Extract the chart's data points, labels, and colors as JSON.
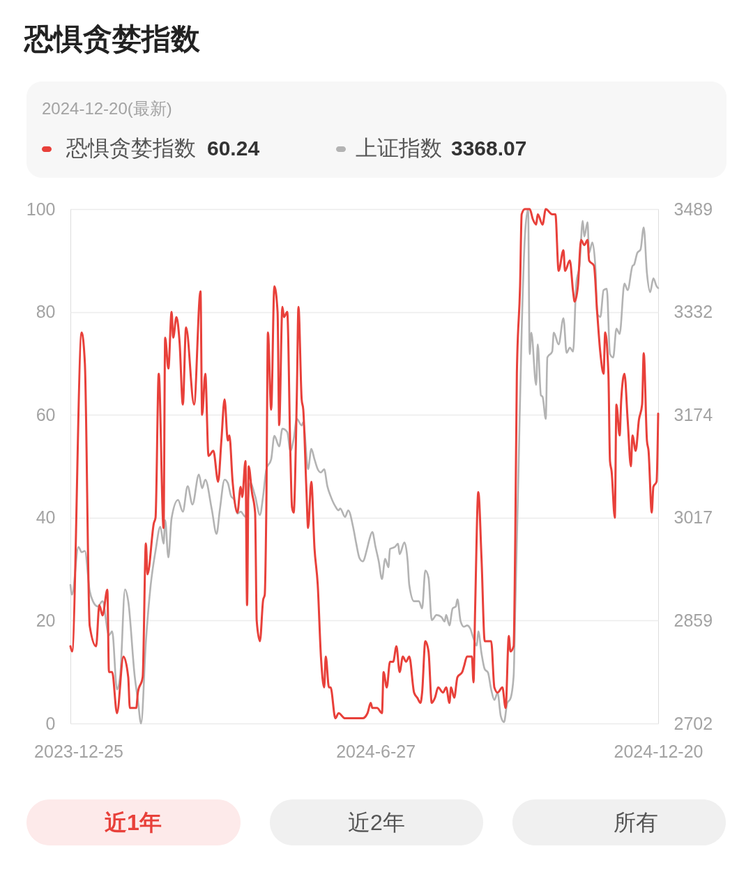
{
  "chart_data": {
    "type": "line",
    "title": "恐惧贪婪指数",
    "annotations": [
      "2024-12-20(最新)",
      "60.24",
      "3368.07",
      "近1年",
      "近2年",
      "所有"
    ],
    "xlim": [
      "2023-12-20",
      "2024-12-20"
    ],
    "xticks": [
      "2023-12-25",
      {
        "value": "2024-06-27",
        "label": "2024-6-27"
      },
      "2024-12-20"
    ],
    "ylim": [
      0,
      100
    ],
    "yticks": [
      0,
      20,
      40,
      60,
      80,
      100
    ],
    "y2lim": [
      2702,
      3489
    ],
    "y2ticks": [
      2702,
      2859,
      3017,
      3174,
      3332,
      3489
    ],
    "grid": "y",
    "legend": "top",
    "series": [
      {
        "name": "恐惧贪婪指数",
        "color": "#e8403a",
        "x": [
          "2023-12-20",
          "2023-12-21",
          "2023-12-27",
          "2023-12-29",
          "2024-01-01",
          "2024-01-05",
          "2024-01-07",
          "2024-01-09",
          "2024-01-12",
          "2024-01-13",
          "2024-01-15",
          "2024-01-18",
          "2024-01-22",
          "2024-01-25",
          "2024-01-26",
          "2024-01-30",
          "2024-01-31",
          "2024-02-03",
          "2024-02-05",
          "2024-02-06",
          "2024-02-10",
          "2024-02-11",
          "2024-02-13",
          "2024-02-16",
          "2024-02-17",
          "2024-02-19",
          "2024-02-21",
          "2024-02-22",
          "2024-02-24",
          "2024-02-26",
          "2024-02-28",
          "2024-03-01",
          "2024-03-06",
          "2024-03-10",
          "2024-03-11",
          "2024-03-13",
          "2024-03-15",
          "2024-03-18",
          "2024-03-21",
          "2024-03-23",
          "2024-03-25",
          "2024-03-27",
          "2024-03-28",
          "2024-03-30",
          "2024-04-02",
          "2024-04-04",
          "2024-04-05",
          "2024-04-07",
          "2024-04-08",
          "2024-04-09",
          "2024-04-11",
          "2024-04-13",
          "2024-04-14",
          "2024-04-16",
          "2024-04-18",
          "2024-04-19",
          "2024-04-20",
          "2024-04-21",
          "2024-04-23",
          "2024-04-25",
          "2024-04-27",
          "2024-04-28",
          "2024-04-30",
          "2024-05-01",
          "2024-05-03",
          "2024-05-05",
          "2024-05-06",
          "2024-05-07",
          "2024-05-09",
          "2024-05-10",
          "2024-05-12",
          "2024-05-13",
          "2024-05-15",
          "2024-05-16",
          "2024-05-18",
          "2024-05-20",
          "2024-05-22",
          "2024-05-24",
          "2024-05-26",
          "2024-05-27",
          "2024-05-29",
          "2024-05-30",
          "2024-06-02",
          "2024-06-04",
          "2024-06-08",
          "2024-06-11",
          "2024-06-14",
          "2024-06-16",
          "2024-06-19",
          "2024-06-22",
          "2024-06-24",
          "2024-06-25",
          "2024-06-28",
          "2024-07-01",
          "2024-07-02",
          "2024-07-04",
          "2024-07-06",
          "2024-07-08",
          "2024-07-10",
          "2024-07-12",
          "2024-07-14",
          "2024-07-16",
          "2024-07-18",
          "2024-07-21",
          "2024-07-23",
          "2024-07-25",
          "2024-07-26",
          "2024-07-28",
          "2024-07-30",
          "2024-08-01",
          "2024-08-03",
          "2024-08-05",
          "2024-08-08",
          "2024-08-10",
          "2024-08-12",
          "2024-08-13",
          "2024-08-15",
          "2024-08-17",
          "2024-08-20",
          "2024-08-21",
          "2024-08-23",
          "2024-08-26",
          "2024-08-27",
          "2024-08-28",
          "2024-08-30",
          "2024-09-01",
          "2024-09-03",
          "2024-09-05",
          "2024-09-07",
          "2024-09-09",
          "2024-09-11",
          "2024-09-14",
          "2024-09-16",
          "2024-09-18",
          "2024-09-19",
          "2024-09-21",
          "2024-09-22",
          "2024-09-23",
          "2024-09-25",
          "2024-09-26",
          "2024-09-28",
          "2024-10-01",
          "2024-10-03",
          "2024-10-05",
          "2024-10-06",
          "2024-10-09",
          "2024-10-11",
          "2024-10-15",
          "2024-10-17",
          "2024-10-19",
          "2024-10-22",
          "2024-10-23",
          "2024-10-26",
          "2024-10-28",
          "2024-10-29",
          "2024-10-31",
          "2024-11-02",
          "2024-11-04",
          "2024-11-06",
          "2024-11-07",
          "2024-11-10",
          "2024-11-12",
          "2024-11-14",
          "2024-11-16",
          "2024-11-17",
          "2024-11-19",
          "2024-11-20",
          "2024-11-21",
          "2024-11-23",
          "2024-11-24",
          "2024-11-26",
          "2024-11-27",
          "2024-11-29",
          "2024-12-01",
          "2024-12-03",
          "2024-12-04",
          "2024-12-06",
          "2024-12-08",
          "2024-12-10",
          "2024-12-11",
          "2024-12-13",
          "2024-12-14",
          "2024-12-16",
          "2024-12-17",
          "2024-12-19",
          "2024-12-20"
        ],
        "values": [
          15,
          14,
          76,
          70,
          19,
          15,
          23,
          21,
          26,
          10,
          10,
          2,
          13,
          9,
          3,
          3,
          6,
          9,
          35,
          29,
          39,
          40,
          68,
          38,
          75,
          69,
          80,
          75,
          79,
          74,
          62,
          77,
          62,
          84,
          60,
          68,
          52,
          53,
          47,
          55,
          63,
          55,
          56,
          47,
          41,
          46,
          44,
          51,
          23,
          50,
          45,
          41,
          20,
          16,
          24,
          25,
          42,
          76,
          61,
          85,
          80,
          58,
          81,
          79,
          80,
          52,
          42,
          41,
          64,
          81,
          63,
          61,
          45,
          38,
          47,
          34,
          27,
          13,
          7,
          13,
          7,
          7,
          1,
          2,
          1,
          1,
          1,
          1,
          1,
          2,
          4,
          3,
          3,
          2,
          10,
          7,
          12,
          12,
          15,
          10,
          13,
          12,
          13,
          6,
          5,
          4,
          6,
          16,
          14,
          4,
          5,
          7,
          6,
          7,
          4,
          7,
          5,
          9,
          10,
          11,
          13,
          13,
          8,
          22,
          45,
          32,
          16,
          16,
          16,
          7,
          6,
          7,
          3,
          17,
          14,
          15,
          36,
          68,
          85,
          99,
          100,
          100,
          98,
          97,
          99,
          97,
          100,
          99,
          99,
          88,
          92,
          88,
          90,
          84,
          82,
          85,
          94,
          93,
          94,
          90,
          89,
          80,
          72,
          68,
          76,
          68,
          51,
          49,
          40,
          62,
          56,
          63,
          68,
          59,
          50,
          56,
          53,
          59,
          62,
          72,
          55,
          53,
          41,
          46,
          47,
          60.24
        ]
      },
      {
        "name": "上证指数",
        "color": "#b3b3b3",
        "axis": "y2",
        "x": [
          "2023-12-20",
          "2023-12-21",
          "2023-12-25",
          "2023-12-27",
          "2023-12-29",
          "2024-01-01",
          "2024-01-03",
          "2024-01-06",
          "2024-01-09",
          "2024-01-13",
          "2024-01-15",
          "2024-01-18",
          "2024-01-20",
          "2024-01-23",
          "2024-01-25",
          "2024-01-29",
          "2024-01-31",
          "2024-02-02",
          "2024-02-05",
          "2024-02-08",
          "2024-02-11",
          "2024-02-14",
          "2024-02-16",
          "2024-02-17",
          "2024-02-19",
          "2024-02-21",
          "2024-02-25",
          "2024-02-28",
          "2024-03-02",
          "2024-03-05",
          "2024-03-09",
          "2024-03-11",
          "2024-03-13",
          "2024-03-17",
          "2024-03-20",
          "2024-03-22",
          "2024-03-25",
          "2024-03-27",
          "2024-03-29",
          "2024-03-31",
          "2024-04-02",
          "2024-04-04",
          "2024-04-07",
          "2024-04-10",
          "2024-04-13",
          "2024-04-16",
          "2024-04-18",
          "2024-04-20",
          "2024-04-23",
          "2024-04-25",
          "2024-04-28",
          "2024-04-30",
          "2024-05-03",
          "2024-05-05",
          "2024-05-07",
          "2024-05-09",
          "2024-05-12",
          "2024-05-13",
          "2024-05-16",
          "2024-05-18",
          "2024-05-20",
          "2024-05-22",
          "2024-05-24",
          "2024-05-26",
          "2024-05-28",
          "2024-05-30",
          "2024-06-02",
          "2024-06-04",
          "2024-06-05",
          "2024-06-08",
          "2024-06-10",
          "2024-06-13",
          "2024-06-15",
          "2024-06-17",
          "2024-06-19",
          "2024-06-22",
          "2024-06-23",
          "2024-06-25",
          "2024-06-27",
          "2024-06-29",
          "2024-07-01",
          "2024-07-03",
          "2024-07-05",
          "2024-07-06",
          "2024-07-09",
          "2024-07-11",
          "2024-07-12",
          "2024-07-15",
          "2024-07-17",
          "2024-07-18",
          "2024-07-21",
          "2024-07-24",
          "2024-07-26",
          "2024-07-28",
          "2024-07-30",
          "2024-08-01",
          "2024-08-04",
          "2024-08-07",
          "2024-08-09",
          "2024-08-10",
          "2024-08-12",
          "2024-08-14",
          "2024-08-16",
          "2024-08-17",
          "2024-08-19",
          "2024-08-21",
          "2024-08-23",
          "2024-08-25",
          "2024-08-27",
          "2024-08-29",
          "2024-08-30",
          "2024-09-01",
          "2024-09-03",
          "2024-09-05",
          "2024-09-07",
          "2024-09-09",
          "2024-09-11",
          "2024-09-13",
          "2024-09-15",
          "2024-09-17",
          "2024-09-19",
          "2024-09-21",
          "2024-09-22",
          "2024-09-24",
          "2024-09-26",
          "2024-09-28",
          "2024-09-30",
          "2024-10-01",
          "2024-10-02",
          "2024-10-05",
          "2024-10-06",
          "2024-10-08",
          "2024-10-09",
          "2024-10-11",
          "2024-10-12",
          "2024-10-15",
          "2024-10-16",
          "2024-10-19",
          "2024-10-22",
          "2024-10-24",
          "2024-10-26",
          "2024-10-28",
          "2024-10-30",
          "2024-11-01",
          "2024-11-03",
          "2024-11-04",
          "2024-11-06",
          "2024-11-07",
          "2024-11-09",
          "2024-11-11",
          "2024-11-12",
          "2024-11-14",
          "2024-11-16",
          "2024-11-18",
          "2024-11-20",
          "2024-11-22",
          "2024-11-24",
          "2024-11-26",
          "2024-11-29",
          "2024-12-01",
          "2024-12-04",
          "2024-12-05",
          "2024-12-07",
          "2024-12-09",
          "2024-12-11",
          "2024-12-13",
          "2024-12-15",
          "2024-12-17",
          "2024-12-19",
          "2024-12-20"
        ],
        "values": [
          2914,
          2899,
          2972,
          2964,
          2966,
          2905,
          2889,
          2881,
          2889,
          2837,
          2843,
          2754,
          2775,
          2907,
          2889,
          2775,
          2738,
          2702,
          2827,
          2914,
          2966,
          3003,
          2977,
          3013,
          2956,
          3016,
          3044,
          3026,
          3065,
          3037,
          3083,
          3062,
          3075,
          3030,
          2992,
          3028,
          3075,
          3070,
          3050,
          3044,
          3023,
          3026,
          3018,
          3070,
          3050,
          3021,
          3050,
          3091,
          3106,
          3142,
          3126,
          3153,
          3148,
          3119,
          3137,
          3168,
          3158,
          3163,
          3091,
          3122,
          3106,
          3091,
          3086,
          3091,
          3065,
          3050,
          3034,
          3028,
          3031,
          3018,
          3028,
          3003,
          2977,
          2955,
          2950,
          2972,
          2982,
          2995,
          2972,
          2950,
          2923,
          2954,
          2941,
          2969,
          2972,
          2977,
          2961,
          2979,
          2950,
          2914,
          2889,
          2889,
          2878,
          2936,
          2925,
          2860,
          2868,
          2865,
          2858,
          2868,
          2852,
          2878,
          2881,
          2892,
          2858,
          2850,
          2852,
          2847,
          2832,
          2821,
          2843,
          2809,
          2785,
          2780,
          2754,
          2738,
          2749,
          2713,
          2704,
          2733,
          2740,
          2775,
          2878,
          3086,
          3303,
          3447,
          3489,
          3267,
          3300,
          3220,
          3282,
          3204,
          3202,
          3168,
          3262,
          3271,
          3300,
          3282,
          3322,
          3269,
          3277,
          3271,
          3375,
          3402,
          3471,
          3447,
          3469,
          3422,
          3438,
          3396,
          3329,
          3324,
          3365,
          3367,
          3267,
          3262,
          3306,
          3298,
          3375,
          3365,
          3402,
          3404,
          3422,
          3427,
          3461,
          3391,
          3362,
          3383,
          3371,
          3368.07
        ]
      }
    ]
  }
}
